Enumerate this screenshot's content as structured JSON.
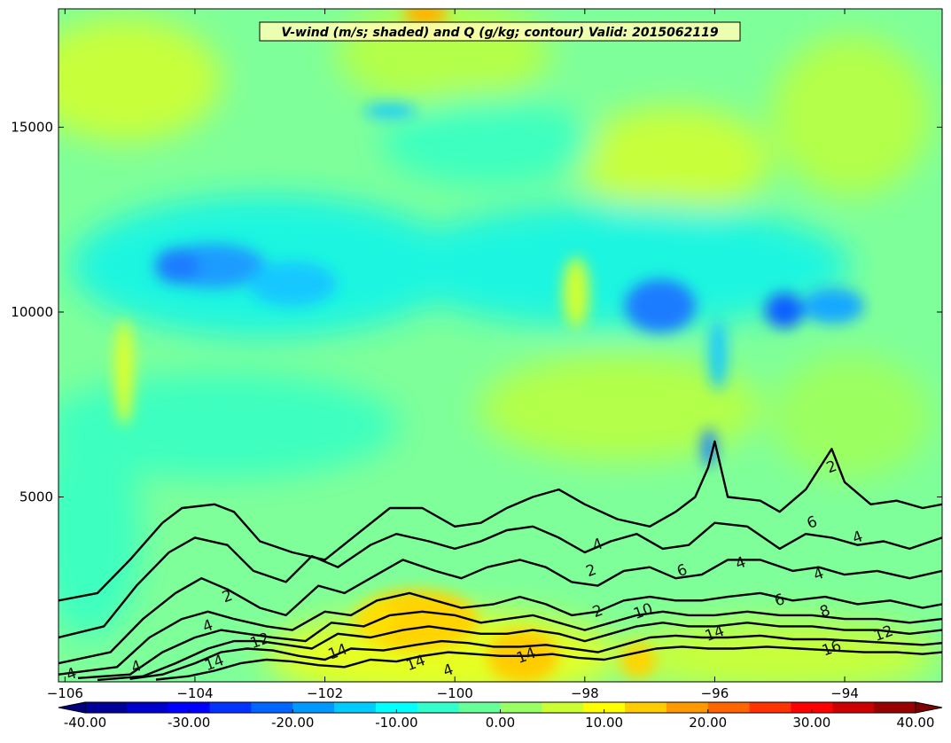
{
  "chart_data": {
    "type": "heatmap",
    "title": "V-wind (m/s; shaded) and Q (g/kg; contour) Valid: 2015062119",
    "xlabel": "",
    "ylabel": "",
    "xlim": [
      -106.1,
      -92.5
    ],
    "ylim": [
      0,
      18200
    ],
    "x_ticks": [
      -106,
      -104,
      -102,
      -100,
      -98,
      -96,
      -94
    ],
    "x_tick_labels": [
      "−106",
      "−104",
      "−102",
      "−100",
      "−98",
      "−96",
      "−94"
    ],
    "y_ticks": [
      5000,
      10000,
      15000
    ],
    "y_tick_labels": [
      "5000",
      "10000",
      "15000"
    ],
    "grid": false,
    "shaded_variable": "V-wind (m/s)",
    "contour_variable": "Q (g/kg)",
    "colorbar": {
      "min": -40,
      "max": 40,
      "step": 4,
      "extend": "both",
      "ticks": [
        -40,
        -30,
        -20,
        -10,
        0,
        10,
        20,
        30,
        40
      ],
      "tick_labels": [
        "-40.00",
        "-30.00",
        "-20.00",
        "-10.00",
        "0.00",
        "10.00",
        "20.00",
        "30.00",
        "40.00"
      ]
    },
    "contour_levels": [
      2,
      4,
      6,
      8,
      10,
      12,
      14,
      16
    ],
    "contours": [
      {
        "level": 2,
        "x": [
          -106.1,
          -105.5,
          -105.0,
          -104.5,
          -104.2,
          -103.7,
          -103.4,
          -103.0,
          -102.5,
          -102.0,
          -101.5,
          -101.0,
          -100.5,
          -100.0,
          -99.6,
          -99.2,
          -98.8,
          -98.4,
          -98.0,
          -97.5,
          -97.0,
          -96.6,
          -96.3,
          -96.1,
          -96.0,
          -95.8,
          -95.3,
          -95.0,
          -94.6,
          -94.2,
          -94.0,
          -93.6,
          -93.2,
          -92.8,
          -92.5
        ],
        "y": [
          2200,
          2400,
          3300,
          4300,
          4700,
          4800,
          4600,
          3800,
          3500,
          3300,
          4000,
          4700,
          4700,
          4200,
          4300,
          4700,
          5000,
          5200,
          4800,
          4400,
          4200,
          4600,
          5000,
          5800,
          6500,
          5000,
          4900,
          4600,
          5200,
          6300,
          5400,
          4800,
          4900,
          4700,
          4800
        ]
      },
      {
        "level": 4,
        "x": [
          -106.1,
          -105.4,
          -104.9,
          -104.4,
          -104.0,
          -103.5,
          -103.1,
          -102.6,
          -102.2,
          -101.8,
          -101.3,
          -100.9,
          -100.4,
          -100.0,
          -99.6,
          -99.2,
          -98.8,
          -98.4,
          -98.0,
          -97.6,
          -97.2,
          -96.8,
          -96.4,
          -96.0,
          -95.5,
          -95.0,
          -94.6,
          -94.2,
          -93.8,
          -93.4,
          -93.0,
          -92.5
        ],
        "y": [
          1200,
          1500,
          2600,
          3500,
          3900,
          3700,
          3000,
          2700,
          3400,
          3100,
          3700,
          4000,
          3800,
          3600,
          3800,
          4100,
          4200,
          3900,
          3500,
          3800,
          4000,
          3600,
          3700,
          4300,
          4200,
          3600,
          4000,
          3900,
          3700,
          3800,
          3600,
          3900
        ]
      },
      {
        "level": 6,
        "x": [
          -106.1,
          -105.3,
          -104.8,
          -104.3,
          -103.9,
          -103.5,
          -103.0,
          -102.6,
          -102.1,
          -101.7,
          -101.2,
          -100.8,
          -100.3,
          -99.9,
          -99.5,
          -99.0,
          -98.6,
          -98.2,
          -97.8,
          -97.4,
          -97.0,
          -96.6,
          -96.2,
          -95.8,
          -95.3,
          -94.8,
          -94.4,
          -94.0,
          -93.5,
          -93.0,
          -92.5
        ],
        "y": [
          500,
          800,
          1700,
          2400,
          2800,
          2500,
          2000,
          1800,
          2600,
          2400,
          2900,
          3300,
          3000,
          2800,
          3100,
          3300,
          3100,
          2700,
          2600,
          3000,
          3100,
          2800,
          2900,
          3300,
          3300,
          3000,
          3100,
          2900,
          3000,
          2800,
          3000
        ]
      },
      {
        "level": 8,
        "x": [
          -106.1,
          -105.2,
          -104.7,
          -104.2,
          -103.8,
          -103.4,
          -102.9,
          -102.5,
          -102.0,
          -101.6,
          -101.2,
          -100.7,
          -100.3,
          -99.9,
          -99.4,
          -99.0,
          -98.6,
          -98.2,
          -97.8,
          -97.4,
          -97.0,
          -96.6,
          -96.2,
          -95.8,
          -95.3,
          -94.8,
          -94.3,
          -93.8,
          -93.3,
          -92.8,
          -92.5
        ],
        "y": [
          200,
          400,
          1200,
          1700,
          1900,
          1700,
          1500,
          1400,
          1900,
          1800,
          2200,
          2400,
          2200,
          2000,
          2100,
          2300,
          2100,
          1800,
          1900,
          2200,
          2300,
          2200,
          2200,
          2300,
          2400,
          2200,
          2300,
          2100,
          2200,
          2000,
          2100
        ]
      },
      {
        "level": 10,
        "x": [
          -105.8,
          -105.0,
          -104.5,
          -104.0,
          -103.6,
          -103.2,
          -102.8,
          -102.3,
          -101.9,
          -101.4,
          -101.0,
          -100.5,
          -100.0,
          -99.6,
          -99.2,
          -98.8,
          -98.4,
          -98.0,
          -97.6,
          -97.2,
          -96.8,
          -96.4,
          -96.0,
          -95.5,
          -95.0,
          -94.5,
          -94.0,
          -93.5,
          -93.0,
          -92.5
        ],
        "y": [
          100,
          200,
          800,
          1200,
          1400,
          1300,
          1200,
          1100,
          1600,
          1500,
          1800,
          1900,
          1800,
          1600,
          1700,
          1800,
          1600,
          1400,
          1600,
          1800,
          1900,
          1800,
          1800,
          1900,
          1800,
          1800,
          1700,
          1700,
          1600,
          1700
        ]
      },
      {
        "level": 12,
        "x": [
          -105.5,
          -104.8,
          -104.3,
          -103.8,
          -103.4,
          -103.0,
          -102.6,
          -102.2,
          -101.8,
          -101.3,
          -100.8,
          -100.4,
          -100.0,
          -99.6,
          -99.2,
          -98.8,
          -98.4,
          -98.0,
          -97.6,
          -97.2,
          -96.8,
          -96.4,
          -96.0,
          -95.5,
          -95.0,
          -94.5,
          -94.0,
          -93.5,
          -93.0,
          -92.5
        ],
        "y": [
          50,
          150,
          500,
          900,
          1100,
          1100,
          1000,
          900,
          1300,
          1200,
          1400,
          1500,
          1400,
          1300,
          1300,
          1400,
          1300,
          1100,
          1300,
          1500,
          1600,
          1500,
          1500,
          1600,
          1500,
          1500,
          1400,
          1400,
          1300,
          1400
        ]
      },
      {
        "level": 14,
        "x": [
          -105.0,
          -104.5,
          -104.0,
          -103.6,
          -103.2,
          -102.8,
          -102.4,
          -102.0,
          -101.6,
          -101.1,
          -100.6,
          -100.2,
          -99.8,
          -99.4,
          -99.0,
          -98.6,
          -98.2,
          -97.8,
          -97.4,
          -97.0,
          -96.6,
          -96.2,
          -95.8,
          -95.3,
          -94.8,
          -94.3,
          -93.8,
          -93.3,
          -92.8,
          -92.5
        ],
        "y": [
          80,
          200,
          500,
          800,
          900,
          850,
          700,
          600,
          900,
          850,
          1000,
          1100,
          1050,
          950,
          950,
          1000,
          900,
          800,
          1000,
          1200,
          1250,
          1200,
          1200,
          1250,
          1150,
          1150,
          1100,
          1050,
          1000,
          1050
        ]
      },
      {
        "level": 16,
        "x": [
          -104.6,
          -104.1,
          -103.7,
          -103.3,
          -102.9,
          -102.5,
          -102.1,
          -101.7,
          -101.3,
          -100.9,
          -100.5,
          -100.1,
          -99.7,
          -99.3,
          -98.9,
          -98.5,
          -98.1,
          -97.7,
          -97.3,
          -96.9,
          -96.5,
          -96.1,
          -95.7,
          -95.2,
          -94.7,
          -94.2,
          -93.7,
          -93.2,
          -92.8,
          -92.5
        ],
        "y": [
          60,
          150,
          300,
          500,
          600,
          550,
          450,
          400,
          600,
          550,
          700,
          800,
          750,
          700,
          700,
          750,
          650,
          600,
          750,
          900,
          950,
          900,
          900,
          950,
          900,
          850,
          800,
          800,
          750,
          800
        ]
      }
    ],
    "contour_label_instances": [
      {
        "label": "2",
        "x": -94.2,
        "y": 5800
      },
      {
        "label": "2",
        "x": -103.5,
        "y": 2300
      },
      {
        "label": "2",
        "x": -97.9,
        "y": 3000
      },
      {
        "label": "2",
        "x": -97.8,
        "y": 1900
      },
      {
        "label": "4",
        "x": -93.8,
        "y": 3900
      },
      {
        "label": "4",
        "x": -97.8,
        "y": 3700
      },
      {
        "label": "4",
        "x": -95.6,
        "y": 3200
      },
      {
        "label": "4",
        "x": -94.4,
        "y": 2900
      },
      {
        "label": "4",
        "x": -105.9,
        "y": 200
      },
      {
        "label": "4",
        "x": -104.9,
        "y": 400
      },
      {
        "label": "4",
        "x": -103.8,
        "y": 1500
      },
      {
        "label": "6",
        "x": -94.5,
        "y": 4300
      },
      {
        "label": "6",
        "x": -96.5,
        "y": 3000
      },
      {
        "label": "6",
        "x": -95.0,
        "y": 2200
      },
      {
        "label": "8",
        "x": -94.3,
        "y": 1900
      },
      {
        "label": "10",
        "x": -97.1,
        "y": 1900
      },
      {
        "label": "12",
        "x": -93.4,
        "y": 1300
      },
      {
        "label": "12",
        "x": -103.0,
        "y": 1100
      },
      {
        "label": "14",
        "x": -96.0,
        "y": 1300
      },
      {
        "label": "14",
        "x": -101.8,
        "y": 800
      },
      {
        "label": "14",
        "x": -100.6,
        "y": 500
      },
      {
        "label": "14",
        "x": -98.9,
        "y": 700
      },
      {
        "label": "14",
        "x": -103.7,
        "y": 500
      },
      {
        "label": "16",
        "x": -94.2,
        "y": 900
      },
      {
        "label": "4",
        "x": -100.1,
        "y": 300
      }
    ],
    "colors": {
      "extend_low": "#00007f",
      "extend_high": "#7f0000",
      "contour_line": "#000000",
      "title_box_bg": "#ffffb4"
    }
  }
}
